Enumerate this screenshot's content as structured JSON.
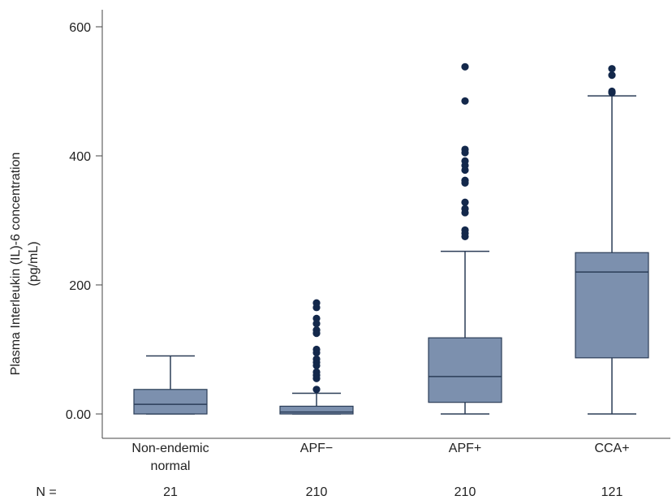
{
  "chart_data": {
    "type": "box",
    "title": "",
    "ylabel": [
      "Plasma Interleukin (IL)-6 concentration",
      "(pg/mL)"
    ],
    "ylim": [
      0,
      620
    ],
    "yticks": [
      0,
      200,
      400,
      600
    ],
    "ytick_labels": [
      "0.00",
      "200",
      "400",
      "600"
    ],
    "grid": false,
    "n_label": "N =",
    "colors": {
      "box_fill": "#7c90ae",
      "stroke": "#2b3d57",
      "outlier": "#13284b"
    },
    "categories": [
      {
        "label": [
          "Non-endemic",
          "normal"
        ],
        "n": "21",
        "stats": {
          "min": 0,
          "q1": 0,
          "median": 15,
          "q3": 38,
          "max": 90
        },
        "outliers": []
      },
      {
        "label": [
          "APF−"
        ],
        "n": "210",
        "stats": {
          "min": 0,
          "q1": 0,
          "median": 3,
          "q3": 12,
          "max": 32
        },
        "outliers": [
          38,
          55,
          60,
          65,
          75,
          80,
          85,
          95,
          100,
          125,
          130,
          140,
          148,
          165,
          172
        ]
      },
      {
        "label": [
          "APF+"
        ],
        "n": "210",
        "stats": {
          "min": 0,
          "q1": 18,
          "median": 58,
          "q3": 118,
          "max": 252
        },
        "outliers": [
          275,
          280,
          285,
          312,
          318,
          328,
          358,
          362,
          378,
          385,
          392,
          405,
          410,
          485,
          538
        ]
      },
      {
        "label": [
          "CCA+"
        ],
        "n": "121",
        "stats": {
          "min": 0,
          "q1": 87,
          "median": 220,
          "q3": 250,
          "max": 493
        },
        "outliers": [
          498,
          500,
          525,
          535
        ]
      }
    ]
  }
}
